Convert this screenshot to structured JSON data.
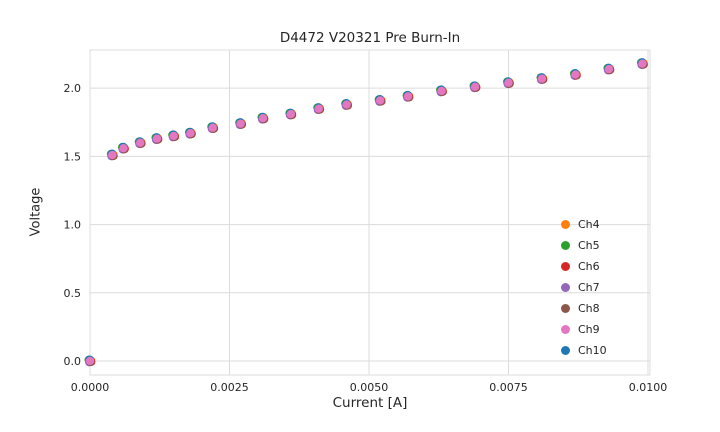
{
  "chart_data": {
    "type": "scatter",
    "title": "D4472 V20321 Pre Burn-In",
    "xlabel": "Current [A]",
    "ylabel": "Voltage",
    "xlim": [
      0,
      0.010036
    ],
    "ylim": [
      -0.103,
      2.28
    ],
    "grid": true,
    "legend_position": "lower right",
    "xticks": {
      "values": [
        0.0,
        0.0025,
        0.005,
        0.0075,
        0.01
      ],
      "labels": [
        "0.0000",
        "0.0025",
        "0.0050",
        "0.0075",
        "0.0100"
      ]
    },
    "yticks": {
      "values": [
        0.0,
        0.5,
        1.0,
        1.5,
        2.0
      ],
      "labels": [
        "0.0",
        "0.5",
        "1.0",
        "1.5",
        "2.0"
      ]
    },
    "x": [
      0.0,
      0.0004,
      0.0006,
      0.0009,
      0.0012,
      0.0015,
      0.0018,
      0.0022,
      0.0027,
      0.0031,
      0.0036,
      0.0041,
      0.0046,
      0.0052,
      0.0057,
      0.0063,
      0.0069,
      0.0075,
      0.0081,
      0.0087,
      0.0093,
      0.0099
    ],
    "series": [
      {
        "name": "Ch4",
        "color": "#ff7f0e",
        "values": [
          0.0,
          1.51,
          1.56,
          1.6,
          1.63,
          1.65,
          1.67,
          1.71,
          1.74,
          1.78,
          1.81,
          1.85,
          1.88,
          1.91,
          1.94,
          1.98,
          2.01,
          2.04,
          2.07,
          2.1,
          2.14,
          2.18
        ]
      },
      {
        "name": "Ch5",
        "color": "#2ca02c",
        "values": [
          0.0,
          1.51,
          1.56,
          1.6,
          1.63,
          1.65,
          1.67,
          1.71,
          1.74,
          1.78,
          1.81,
          1.85,
          1.88,
          1.91,
          1.94,
          1.98,
          2.01,
          2.04,
          2.07,
          2.1,
          2.14,
          2.18
        ]
      },
      {
        "name": "Ch6",
        "color": "#d62728",
        "values": [
          0.0,
          1.51,
          1.56,
          1.6,
          1.63,
          1.65,
          1.67,
          1.71,
          1.74,
          1.78,
          1.81,
          1.85,
          1.88,
          1.91,
          1.94,
          1.98,
          2.01,
          2.04,
          2.07,
          2.1,
          2.14,
          2.18
        ]
      },
      {
        "name": "Ch7",
        "color": "#9467bd",
        "values": [
          0.0,
          1.51,
          1.56,
          1.6,
          1.63,
          1.65,
          1.67,
          1.71,
          1.74,
          1.78,
          1.81,
          1.85,
          1.88,
          1.91,
          1.94,
          1.98,
          2.01,
          2.04,
          2.07,
          2.1,
          2.14,
          2.18
        ]
      },
      {
        "name": "Ch8",
        "color": "#8c564b",
        "values": [
          0.0,
          1.51,
          1.56,
          1.6,
          1.63,
          1.65,
          1.67,
          1.71,
          1.74,
          1.78,
          1.81,
          1.85,
          1.88,
          1.91,
          1.94,
          1.98,
          2.01,
          2.04,
          2.07,
          2.1,
          2.14,
          2.18
        ]
      },
      {
        "name": "Ch9",
        "color": "#e377c2",
        "values": [
          0.0,
          1.51,
          1.56,
          1.6,
          1.63,
          1.65,
          1.67,
          1.71,
          1.74,
          1.78,
          1.81,
          1.85,
          1.88,
          1.91,
          1.94,
          1.98,
          2.01,
          2.04,
          2.07,
          2.1,
          2.14,
          2.18
        ]
      },
      {
        "name": "Ch10",
        "color": "#1f77b4",
        "values": [
          0.0,
          1.51,
          1.56,
          1.6,
          1.63,
          1.65,
          1.67,
          1.71,
          1.74,
          1.78,
          1.81,
          1.85,
          1.88,
          1.91,
          1.94,
          1.98,
          2.01,
          2.04,
          2.07,
          2.1,
          2.14,
          2.18
        ]
      }
    ]
  }
}
